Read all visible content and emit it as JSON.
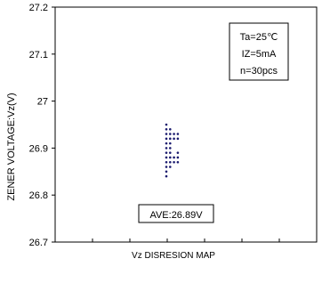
{
  "chart_data": {
    "type": "scatter",
    "title": "",
    "xlabel": "Vz DISRESION MAP",
    "ylabel": "ZENER VOLTAGE:Vz(V)",
    "ylim": [
      26.7,
      27.2
    ],
    "yticks": [
      26.7,
      26.8,
      26.9,
      27.0,
      27.1,
      27.2
    ],
    "ytick_labels": [
      "26.7",
      "26.8",
      "26.9",
      "27",
      "27.1",
      "27.2"
    ],
    "grid": true,
    "conditions": [
      "Ta=25℃",
      "IZ=5mA",
      "n=30pcs"
    ],
    "average_label": "AVE:26.89V",
    "point_color": "#1a1a6e",
    "points": [
      {
        "x": 0,
        "y": 26.95
      },
      {
        "x": 0,
        "y": 26.94
      },
      {
        "x": 0,
        "y": 26.93
      },
      {
        "x": 0,
        "y": 26.92
      },
      {
        "x": 0,
        "y": 26.91
      },
      {
        "x": 0,
        "y": 26.9
      },
      {
        "x": 0,
        "y": 26.89
      },
      {
        "x": 0,
        "y": 26.88
      },
      {
        "x": 0,
        "y": 26.87
      },
      {
        "x": 0,
        "y": 26.86
      },
      {
        "x": 0,
        "y": 26.85
      },
      {
        "x": 0,
        "y": 26.84
      },
      {
        "x": 1,
        "y": 26.94
      },
      {
        "x": 1,
        "y": 26.93
      },
      {
        "x": 1,
        "y": 26.92
      },
      {
        "x": 1,
        "y": 26.91
      },
      {
        "x": 1,
        "y": 26.9
      },
      {
        "x": 1,
        "y": 26.89
      },
      {
        "x": 1,
        "y": 26.88
      },
      {
        "x": 1,
        "y": 26.87
      },
      {
        "x": 1,
        "y": 26.86
      },
      {
        "x": 2,
        "y": 26.93
      },
      {
        "x": 2,
        "y": 26.92
      },
      {
        "x": 2,
        "y": 26.88
      },
      {
        "x": 2,
        "y": 26.87
      },
      {
        "x": 3,
        "y": 26.93
      },
      {
        "x": 3,
        "y": 26.92
      },
      {
        "x": 3,
        "y": 26.88
      },
      {
        "x": 3,
        "y": 26.87
      },
      {
        "x": 3,
        "y": 26.89
      }
    ]
  }
}
